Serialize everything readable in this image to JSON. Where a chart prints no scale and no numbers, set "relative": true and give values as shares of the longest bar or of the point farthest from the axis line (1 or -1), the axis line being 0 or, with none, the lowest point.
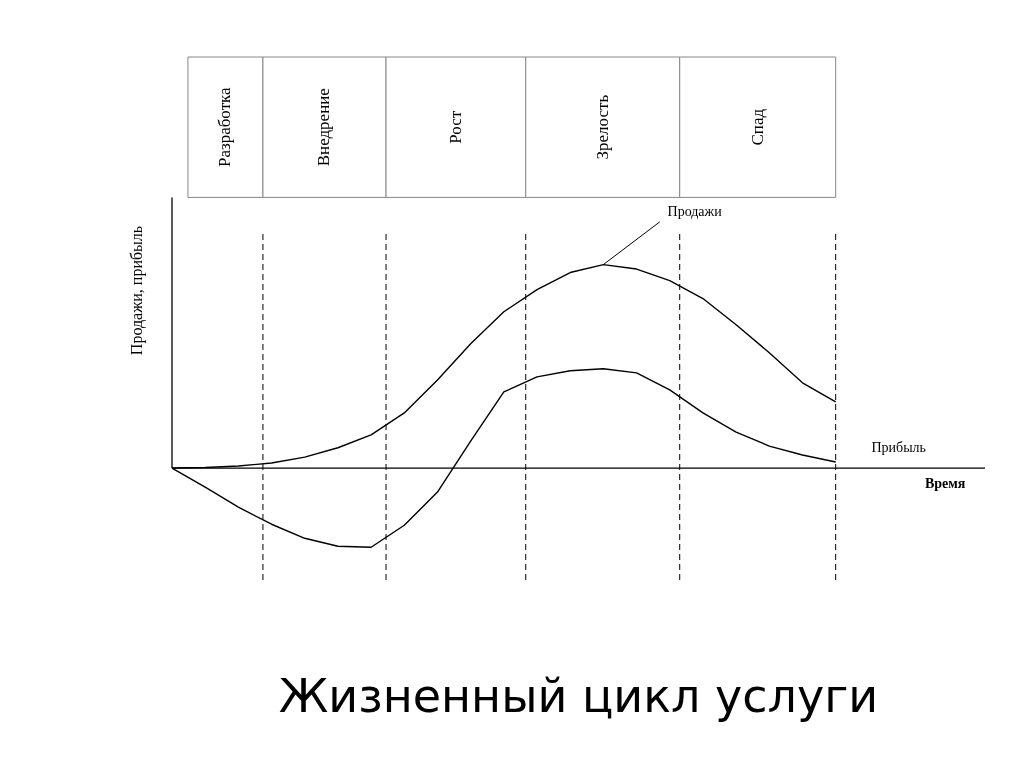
{
  "chart_data": {
    "type": "line",
    "title": "Жизненный цикл услуги",
    "ylabel": "Продажи, прибыль",
    "relative": true,
    "grid": false,
    "marker": "none",
    "line_style": "solid",
    "categories": [
      null,
      null,
      null,
      null,
      null,
      null,
      null,
      null,
      null,
      null,
      null,
      null,
      null,
      null,
      null,
      null,
      null,
      null,
      null,
      null,
      null
    ],
    "series": [
      {
        "name": "Продажи",
        "color": "#000000",
        "values": [
          0,
          0.003,
          0.01,
          0.025,
          0.054,
          0.1,
          0.163,
          0.271,
          0.433,
          0.611,
          0.768,
          0.877,
          0.961,
          1,
          0.978,
          0.921,
          0.833,
          0.704,
          0.567,
          0.419,
          0.325
        ]
      },
      {
        "name": "Прибыль",
        "color": "#000000",
        "values": [
          0,
          -0.094,
          -0.192,
          -0.276,
          -0.345,
          -0.384,
          -0.389,
          -0.281,
          -0.118,
          0.133,
          0.374,
          0.448,
          0.478,
          0.488,
          0.468,
          0.384,
          0.271,
          0.177,
          0.108,
          0.064,
          0.03
        ]
      }
    ],
    "annotations": [
      "Разработка",
      "Внедрение",
      "Рост",
      "Зрелость",
      "Спад",
      "Время"
    ]
  }
}
